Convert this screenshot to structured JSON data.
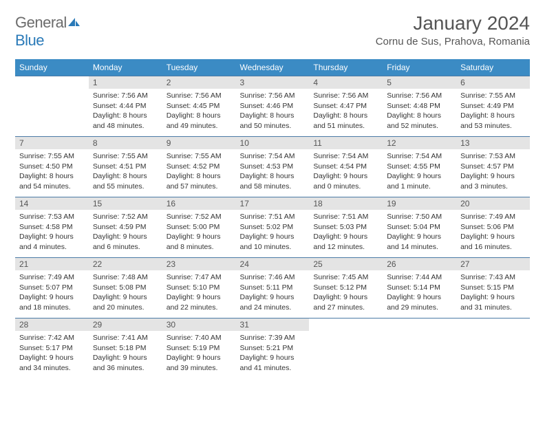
{
  "brand": {
    "part1": "General",
    "part2": "Blue"
  },
  "title": "January 2024",
  "location": "Cornu de Sus, Prahova, Romania",
  "colors": {
    "header_bg": "#3b8bc4",
    "daynum_bg": "#e4e4e4",
    "border": "#4a7aa5",
    "text": "#333333",
    "title": "#555555"
  },
  "weekdays": [
    "Sunday",
    "Monday",
    "Tuesday",
    "Wednesday",
    "Thursday",
    "Friday",
    "Saturday"
  ],
  "weeks": [
    [
      null,
      {
        "d": "1",
        "sr": "Sunrise: 7:56 AM",
        "ss": "Sunset: 4:44 PM",
        "dl1": "Daylight: 8 hours",
        "dl2": "and 48 minutes."
      },
      {
        "d": "2",
        "sr": "Sunrise: 7:56 AM",
        "ss": "Sunset: 4:45 PM",
        "dl1": "Daylight: 8 hours",
        "dl2": "and 49 minutes."
      },
      {
        "d": "3",
        "sr": "Sunrise: 7:56 AM",
        "ss": "Sunset: 4:46 PM",
        "dl1": "Daylight: 8 hours",
        "dl2": "and 50 minutes."
      },
      {
        "d": "4",
        "sr": "Sunrise: 7:56 AM",
        "ss": "Sunset: 4:47 PM",
        "dl1": "Daylight: 8 hours",
        "dl2": "and 51 minutes."
      },
      {
        "d": "5",
        "sr": "Sunrise: 7:56 AM",
        "ss": "Sunset: 4:48 PM",
        "dl1": "Daylight: 8 hours",
        "dl2": "and 52 minutes."
      },
      {
        "d": "6",
        "sr": "Sunrise: 7:55 AM",
        "ss": "Sunset: 4:49 PM",
        "dl1": "Daylight: 8 hours",
        "dl2": "and 53 minutes."
      }
    ],
    [
      {
        "d": "7",
        "sr": "Sunrise: 7:55 AM",
        "ss": "Sunset: 4:50 PM",
        "dl1": "Daylight: 8 hours",
        "dl2": "and 54 minutes."
      },
      {
        "d": "8",
        "sr": "Sunrise: 7:55 AM",
        "ss": "Sunset: 4:51 PM",
        "dl1": "Daylight: 8 hours",
        "dl2": "and 55 minutes."
      },
      {
        "d": "9",
        "sr": "Sunrise: 7:55 AM",
        "ss": "Sunset: 4:52 PM",
        "dl1": "Daylight: 8 hours",
        "dl2": "and 57 minutes."
      },
      {
        "d": "10",
        "sr": "Sunrise: 7:54 AM",
        "ss": "Sunset: 4:53 PM",
        "dl1": "Daylight: 8 hours",
        "dl2": "and 58 minutes."
      },
      {
        "d": "11",
        "sr": "Sunrise: 7:54 AM",
        "ss": "Sunset: 4:54 PM",
        "dl1": "Daylight: 9 hours",
        "dl2": "and 0 minutes."
      },
      {
        "d": "12",
        "sr": "Sunrise: 7:54 AM",
        "ss": "Sunset: 4:55 PM",
        "dl1": "Daylight: 9 hours",
        "dl2": "and 1 minute."
      },
      {
        "d": "13",
        "sr": "Sunrise: 7:53 AM",
        "ss": "Sunset: 4:57 PM",
        "dl1": "Daylight: 9 hours",
        "dl2": "and 3 minutes."
      }
    ],
    [
      {
        "d": "14",
        "sr": "Sunrise: 7:53 AM",
        "ss": "Sunset: 4:58 PM",
        "dl1": "Daylight: 9 hours",
        "dl2": "and 4 minutes."
      },
      {
        "d": "15",
        "sr": "Sunrise: 7:52 AM",
        "ss": "Sunset: 4:59 PM",
        "dl1": "Daylight: 9 hours",
        "dl2": "and 6 minutes."
      },
      {
        "d": "16",
        "sr": "Sunrise: 7:52 AM",
        "ss": "Sunset: 5:00 PM",
        "dl1": "Daylight: 9 hours",
        "dl2": "and 8 minutes."
      },
      {
        "d": "17",
        "sr": "Sunrise: 7:51 AM",
        "ss": "Sunset: 5:02 PM",
        "dl1": "Daylight: 9 hours",
        "dl2": "and 10 minutes."
      },
      {
        "d": "18",
        "sr": "Sunrise: 7:51 AM",
        "ss": "Sunset: 5:03 PM",
        "dl1": "Daylight: 9 hours",
        "dl2": "and 12 minutes."
      },
      {
        "d": "19",
        "sr": "Sunrise: 7:50 AM",
        "ss": "Sunset: 5:04 PM",
        "dl1": "Daylight: 9 hours",
        "dl2": "and 14 minutes."
      },
      {
        "d": "20",
        "sr": "Sunrise: 7:49 AM",
        "ss": "Sunset: 5:06 PM",
        "dl1": "Daylight: 9 hours",
        "dl2": "and 16 minutes."
      }
    ],
    [
      {
        "d": "21",
        "sr": "Sunrise: 7:49 AM",
        "ss": "Sunset: 5:07 PM",
        "dl1": "Daylight: 9 hours",
        "dl2": "and 18 minutes."
      },
      {
        "d": "22",
        "sr": "Sunrise: 7:48 AM",
        "ss": "Sunset: 5:08 PM",
        "dl1": "Daylight: 9 hours",
        "dl2": "and 20 minutes."
      },
      {
        "d": "23",
        "sr": "Sunrise: 7:47 AM",
        "ss": "Sunset: 5:10 PM",
        "dl1": "Daylight: 9 hours",
        "dl2": "and 22 minutes."
      },
      {
        "d": "24",
        "sr": "Sunrise: 7:46 AM",
        "ss": "Sunset: 5:11 PM",
        "dl1": "Daylight: 9 hours",
        "dl2": "and 24 minutes."
      },
      {
        "d": "25",
        "sr": "Sunrise: 7:45 AM",
        "ss": "Sunset: 5:12 PM",
        "dl1": "Daylight: 9 hours",
        "dl2": "and 27 minutes."
      },
      {
        "d": "26",
        "sr": "Sunrise: 7:44 AM",
        "ss": "Sunset: 5:14 PM",
        "dl1": "Daylight: 9 hours",
        "dl2": "and 29 minutes."
      },
      {
        "d": "27",
        "sr": "Sunrise: 7:43 AM",
        "ss": "Sunset: 5:15 PM",
        "dl1": "Daylight: 9 hours",
        "dl2": "and 31 minutes."
      }
    ],
    [
      {
        "d": "28",
        "sr": "Sunrise: 7:42 AM",
        "ss": "Sunset: 5:17 PM",
        "dl1": "Daylight: 9 hours",
        "dl2": "and 34 minutes."
      },
      {
        "d": "29",
        "sr": "Sunrise: 7:41 AM",
        "ss": "Sunset: 5:18 PM",
        "dl1": "Daylight: 9 hours",
        "dl2": "and 36 minutes."
      },
      {
        "d": "30",
        "sr": "Sunrise: 7:40 AM",
        "ss": "Sunset: 5:19 PM",
        "dl1": "Daylight: 9 hours",
        "dl2": "and 39 minutes."
      },
      {
        "d": "31",
        "sr": "Sunrise: 7:39 AM",
        "ss": "Sunset: 5:21 PM",
        "dl1": "Daylight: 9 hours",
        "dl2": "and 41 minutes."
      },
      null,
      null,
      null
    ]
  ]
}
